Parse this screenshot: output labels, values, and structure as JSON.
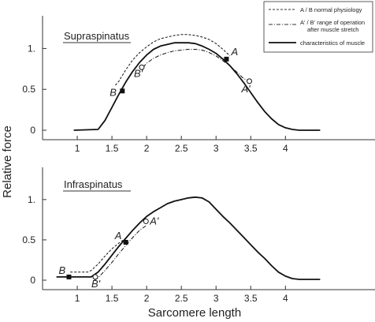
{
  "chart_data": [
    {
      "type": "line",
      "title": "Supraspinatus",
      "xlabel": "Sarcomere length",
      "ylabel": "Relative force",
      "xlim": [
        0.5,
        4.95
      ],
      "ylim": [
        0,
        1.4
      ],
      "x_ticks": [
        1,
        1.5,
        2,
        2.5,
        3,
        3.5,
        4
      ],
      "x_tick_labels": [
        "1",
        "1.5",
        "2",
        "2.5",
        "3",
        "3.5",
        "4"
      ],
      "y_ticks": [
        0,
        0.5,
        1
      ],
      "y_tick_labels": [
        "0",
        "0.5",
        "1."
      ],
      "series": [
        {
          "name": "characteristics of muscle",
          "style": "solid",
          "x": [
            0.95,
            1.3,
            1.4,
            1.5,
            1.6,
            1.7,
            1.8,
            1.9,
            2.0,
            2.1,
            2.2,
            2.3,
            2.4,
            2.5,
            2.6,
            2.7,
            2.8,
            2.9,
            3.0,
            3.1,
            3.2,
            3.3,
            3.4,
            3.5,
            3.6,
            3.7,
            3.8,
            3.9,
            4.0,
            4.1,
            4.2,
            4.5
          ],
          "y": [
            0.0,
            0.01,
            0.12,
            0.28,
            0.44,
            0.59,
            0.72,
            0.83,
            0.92,
            0.99,
            1.03,
            1.05,
            1.07,
            1.07,
            1.07,
            1.06,
            1.03,
            0.99,
            0.94,
            0.87,
            0.79,
            0.69,
            0.58,
            0.46,
            0.34,
            0.23,
            0.14,
            0.07,
            0.03,
            0.01,
            0.0,
            0.0
          ]
        },
        {
          "name": "A / B  normal physiology",
          "style": "dashed",
          "x": [
            1.55,
            1.6,
            1.7,
            1.8,
            1.9,
            2.0,
            2.1,
            2.2,
            2.3,
            2.4,
            2.5,
            2.6,
            2.7,
            2.8,
            2.9,
            3.0,
            3.1,
            3.2
          ],
          "y": [
            0.55,
            0.6,
            0.74,
            0.86,
            0.95,
            1.02,
            1.08,
            1.12,
            1.14,
            1.16,
            1.17,
            1.17,
            1.16,
            1.14,
            1.11,
            1.06,
            0.99,
            0.91
          ]
        },
        {
          "name": "A' / B' range of operation after muscle stretch",
          "style": "dashdot",
          "x": [
            1.95,
            2.0,
            2.1,
            2.2,
            2.3,
            2.4,
            2.5,
            2.6,
            2.7,
            2.8,
            2.9,
            3.0,
            3.1,
            3.2,
            3.3,
            3.4,
            3.5
          ],
          "y": [
            0.77,
            0.82,
            0.88,
            0.92,
            0.95,
            0.97,
            0.98,
            0.99,
            0.99,
            0.98,
            0.95,
            0.91,
            0.85,
            0.79,
            0.71,
            0.63,
            0.6
          ]
        }
      ],
      "points": [
        {
          "label": "B",
          "x": 1.65,
          "y": 0.48,
          "marker": "filled-square"
        },
        {
          "label": "A",
          "x": 3.15,
          "y": 0.87,
          "marker": "filled-square"
        },
        {
          "label": "B'",
          "x": 1.93,
          "y": 0.77,
          "marker": "open-circle"
        },
        {
          "label": "A'",
          "x": 3.48,
          "y": 0.6,
          "marker": "open-circle"
        }
      ]
    },
    {
      "type": "line",
      "title": "Infraspinatus",
      "xlabel": "Sarcomere length",
      "ylabel": "Relative force",
      "xlim": [
        0.5,
        4.95
      ],
      "ylim": [
        0,
        1.4
      ],
      "x_ticks": [
        1,
        1.5,
        2,
        2.5,
        3,
        3.5,
        4
      ],
      "x_tick_labels": [
        "1",
        "1.5",
        "2",
        "2.5",
        "3",
        "3.5",
        "4"
      ],
      "y_ticks": [
        0,
        0.5,
        1
      ],
      "y_tick_labels": [
        "0",
        "0.5",
        "1."
      ],
      "series": [
        {
          "name": "characteristics of muscle",
          "style": "solid",
          "x": [
            0.7,
            1.2,
            1.3,
            1.4,
            1.5,
            1.6,
            1.7,
            1.8,
            1.9,
            2.0,
            2.1,
            2.2,
            2.3,
            2.4,
            2.5,
            2.6,
            2.7,
            2.8,
            2.9,
            3.0,
            3.1,
            3.2,
            3.3,
            3.4,
            3.5,
            3.6,
            3.7,
            3.8,
            3.9,
            4.0,
            4.1,
            4.2,
            4.5
          ],
          "y": [
            0.04,
            0.04,
            0.1,
            0.2,
            0.31,
            0.42,
            0.52,
            0.62,
            0.71,
            0.79,
            0.85,
            0.9,
            0.95,
            0.98,
            1.0,
            1.02,
            1.03,
            1.02,
            0.97,
            0.88,
            0.79,
            0.71,
            0.62,
            0.53,
            0.44,
            0.35,
            0.27,
            0.18,
            0.1,
            0.05,
            0.02,
            0.01,
            0.01
          ]
        },
        {
          "name": "A / B  normal physiology",
          "style": "dashed",
          "x": [
            0.9,
            1.15,
            1.2,
            1.3,
            1.4,
            1.5,
            1.6,
            1.7
          ],
          "y": [
            0.1,
            0.1,
            0.12,
            0.2,
            0.3,
            0.39,
            0.46,
            0.52
          ]
        },
        {
          "name": "A' / B' range of operation after muscle stretch",
          "style": "dashdot",
          "x": [
            1.25,
            1.3,
            1.4,
            1.5,
            1.6,
            1.7,
            1.8,
            1.9,
            2.0
          ],
          "y": [
            0.0,
            0.03,
            0.12,
            0.22,
            0.33,
            0.43,
            0.53,
            0.62,
            0.68
          ]
        }
      ],
      "points": [
        {
          "label": "B",
          "x": 0.88,
          "y": 0.04,
          "marker": "filled-square"
        },
        {
          "label": "A",
          "x": 1.7,
          "y": 0.47,
          "marker": "filled-square"
        },
        {
          "label": "B'",
          "x": 1.26,
          "y": 0.04,
          "marker": "open-circle"
        },
        {
          "label": "A'",
          "x": 1.99,
          "y": 0.73,
          "marker": "open-circle"
        }
      ]
    }
  ],
  "figure": {
    "ylabel": "Relative force",
    "xlabel": "Sarcomere length"
  },
  "legend": {
    "placement": "top-right",
    "items": [
      {
        "style": "dashed",
        "label": "A / B  normal physiology",
        "sublabel": ""
      },
      {
        "style": "dashdot",
        "label": "A' / B' range of operation",
        "sublabel": "after muscle stretch"
      },
      {
        "style": "solid",
        "label": "characteristics of muscle",
        "sublabel": ""
      }
    ]
  }
}
